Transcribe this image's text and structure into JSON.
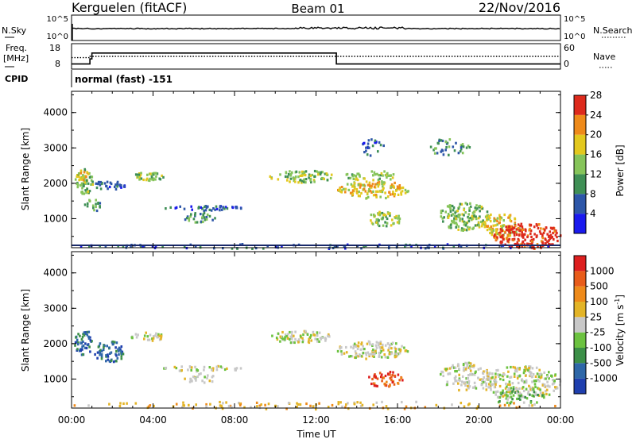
{
  "header": {
    "station": "Kerguelen (fitACF)",
    "beam": "Beam 01",
    "date": "22/Nov/2016"
  },
  "top_panels": {
    "nsky_label": "N.Sky",
    "nsky_ticks": [
      "10^5",
      "10^0"
    ],
    "nsearch_label": "N.Search",
    "nsearch_ticks": [
      "10^5",
      "10^0"
    ],
    "freq_label_1": "Freq.",
    "freq_label_2": "[MHz]",
    "freq_ticks": [
      "18",
      "8"
    ],
    "nave_label": "Nave",
    "nave_ticks": [
      "60",
      "0"
    ],
    "cpid_label": "CPID",
    "cpid_text": "normal (fast) -151",
    "nsky_series": {
      "name": "N.Sky",
      "level": 0.45
    },
    "freq_series": {
      "name": "Freq.",
      "x_hours": [
        0,
        0.9,
        0.9,
        1.0,
        1.0,
        13.0,
        13.0,
        24.0
      ],
      "values": [
        10,
        10,
        12,
        12,
        14.3,
        14.3,
        10,
        10
      ]
    },
    "nave_series": {
      "name": "Nave",
      "x_hours": [
        0,
        0.9,
        0.9,
        24.0
      ],
      "values": [
        27,
        27,
        30,
        30
      ]
    }
  },
  "chart_data": [
    {
      "type": "heatmap",
      "title": "",
      "ylabel": "Slant Range [km]",
      "xlabel": "Time UT",
      "xlim_hours": [
        0,
        24
      ],
      "ylim": [
        180,
        4600
      ],
      "y_ticks": [
        "1000",
        "2000",
        "3000",
        "4000"
      ],
      "x_ticks": [
        "00:00",
        "04:00",
        "08:00",
        "12:00",
        "16:00",
        "20:00",
        "00:00"
      ],
      "colorbar_label": "Power [dB]",
      "colorbar_ticks": [
        "4",
        "8",
        "12",
        "16",
        "20",
        "24",
        "28"
      ],
      "colorbar_colors": [
        "#1a1aee",
        "#2d56a8",
        "#3f8f55",
        "#86c45a",
        "#e3c81e",
        "#ee8a1a",
        "#dd2a1c"
      ],
      "blobs": [
        {
          "t0": 0.1,
          "t1": 1.0,
          "r0": 1700,
          "r1": 2450,
          "level": 3,
          "density": 0.7
        },
        {
          "t0": 0.2,
          "t1": 0.8,
          "r0": 2100,
          "r1": 2400,
          "level": 4,
          "density": 0.6
        },
        {
          "t0": 0.6,
          "t1": 1.4,
          "r0": 1200,
          "r1": 1600,
          "level": 2,
          "density": 0.4
        },
        {
          "t0": 1.0,
          "t1": 2.6,
          "r0": 1850,
          "r1": 2100,
          "level": 1,
          "density": 0.6
        },
        {
          "t0": 2.9,
          "t1": 4.5,
          "r0": 2100,
          "r1": 2350,
          "level": 3,
          "density": 0.7
        },
        {
          "t0": 4.4,
          "t1": 8.5,
          "r0": 1250,
          "r1": 1400,
          "level": 1,
          "density": 0.6
        },
        {
          "t0": 5.5,
          "t1": 7.0,
          "r0": 900,
          "r1": 1200,
          "level": 2,
          "density": 0.55
        },
        {
          "t0": 9.6,
          "t1": 12.8,
          "r0": 2050,
          "r1": 2400,
          "level": 3,
          "density": 0.7
        },
        {
          "t0": 13.0,
          "t1": 16.5,
          "r0": 1600,
          "r1": 2100,
          "level": 4,
          "density": 0.75
        },
        {
          "t0": 13.3,
          "t1": 16.0,
          "r0": 2100,
          "r1": 2400,
          "level": 3,
          "density": 0.5
        },
        {
          "t0": 14.5,
          "t1": 16.2,
          "r0": 800,
          "r1": 1250,
          "level": 3,
          "density": 0.55
        },
        {
          "t0": 14.2,
          "t1": 15.5,
          "r0": 2800,
          "r1": 3300,
          "level": 1,
          "density": 0.4
        },
        {
          "t0": 17.5,
          "t1": 19.5,
          "r0": 2800,
          "r1": 3300,
          "level": 2,
          "density": 0.35
        },
        {
          "t0": 18.0,
          "t1": 20.5,
          "r0": 700,
          "r1": 1500,
          "level": 3,
          "density": 0.65
        },
        {
          "t0": 20.0,
          "t1": 22.0,
          "r0": 500,
          "r1": 1200,
          "level": 4,
          "density": 0.6
        },
        {
          "t0": 20.7,
          "t1": 24.0,
          "r0": 180,
          "r1": 900,
          "level": 6,
          "density": 0.85
        },
        {
          "t0": 0.0,
          "t1": 24.0,
          "r0": 180,
          "r1": 320,
          "level": 1,
          "density": 0.25
        }
      ]
    },
    {
      "type": "heatmap",
      "title": "",
      "ylabel": "Slant Range [km]",
      "xlabel": "Time UT",
      "xlim_hours": [
        0,
        24
      ],
      "ylim": [
        180,
        4600
      ],
      "y_ticks": [
        "1000",
        "2000",
        "3000",
        "4000"
      ],
      "x_ticks": [
        "00:00",
        "04:00",
        "08:00",
        "12:00",
        "16:00",
        "20:00",
        "00:00"
      ],
      "colorbar_label": "Velocity [m s",
      "colorbar_unit_superscript": "-1",
      "colorbar_label_end": "]",
      "colorbar_ticks": [
        "1000",
        "500",
        "100",
        "25",
        "-25",
        "-100",
        "-500",
        "-1000"
      ],
      "colorbar_colors": [
        "#1f3fae",
        "#2e67a8",
        "#3c8f48",
        "#6cc240",
        "#c8c8c8",
        "#e3b427",
        "#ee8a1a",
        "#e85c1a",
        "#dd1f1f"
      ],
      "blobs": [
        {
          "t0": 0.1,
          "t1": 1.0,
          "r0": 1700,
          "r1": 2450,
          "level": 1,
          "density": 0.7
        },
        {
          "t0": 1.0,
          "t1": 2.6,
          "r0": 1500,
          "r1": 2100,
          "level": 1,
          "density": 0.55
        },
        {
          "t0": 2.9,
          "t1": 4.5,
          "r0": 2100,
          "r1": 2350,
          "level": 4,
          "density": 0.55
        },
        {
          "t0": 4.4,
          "t1": 8.5,
          "r0": 1250,
          "r1": 1400,
          "level": 4,
          "density": 0.5
        },
        {
          "t0": 5.5,
          "t1": 7.0,
          "r0": 900,
          "r1": 1200,
          "level": 4,
          "density": 0.45
        },
        {
          "t0": 9.6,
          "t1": 12.8,
          "r0": 2050,
          "r1": 2400,
          "level": 4,
          "density": 0.65
        },
        {
          "t0": 13.0,
          "t1": 16.5,
          "r0": 1600,
          "r1": 2100,
          "level": 4,
          "density": 0.7
        },
        {
          "t0": 14.5,
          "t1": 16.2,
          "r0": 800,
          "r1": 1250,
          "level": 7,
          "density": 0.7
        },
        {
          "t0": 18.0,
          "t1": 20.5,
          "r0": 700,
          "r1": 1500,
          "level": 4,
          "density": 0.5
        },
        {
          "t0": 20.0,
          "t1": 24.0,
          "r0": 500,
          "r1": 1400,
          "level": 4,
          "density": 0.6
        },
        {
          "t0": 20.5,
          "t1": 23.5,
          "r0": 300,
          "r1": 800,
          "level": 3,
          "density": 0.35
        },
        {
          "t0": 0.0,
          "t1": 24.0,
          "r0": 180,
          "r1": 400,
          "level": 5,
          "density": 0.2
        }
      ]
    }
  ]
}
